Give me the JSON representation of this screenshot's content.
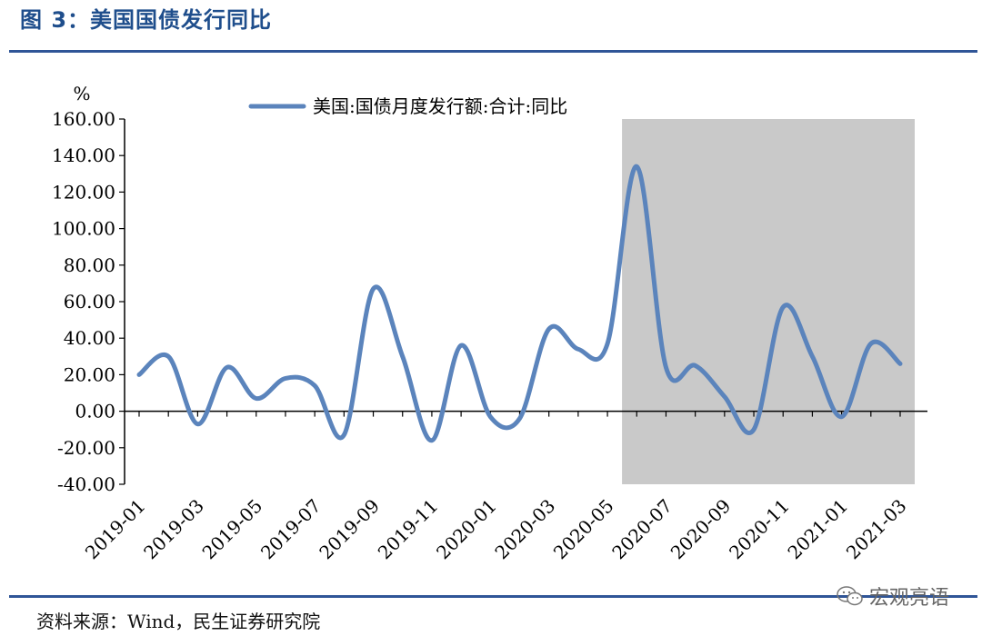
{
  "figure": {
    "title": "图 3：美国国债发行同比",
    "source": "资料来源：Wind，民生证券研究院",
    "watermark": "宏观亮语"
  },
  "colors": {
    "title": "#1f4e8c",
    "rule": "#2f5597",
    "series": "#5b84bc",
    "shade": "#c9c9c9",
    "axis": "#000000"
  },
  "chart_data": {
    "type": "line",
    "unit_label": "%",
    "ylim": [
      -40,
      160
    ],
    "yticks": [
      "160.00",
      "140.00",
      "120.00",
      "100.00",
      "80.00",
      "60.00",
      "40.00",
      "20.00",
      "0.00",
      "-20.00",
      "-40.00"
    ],
    "ytick_values": [
      160,
      140,
      120,
      100,
      80,
      60,
      40,
      20,
      0,
      -20,
      -40
    ],
    "x": [
      "2019-01",
      "2019-02",
      "2019-03",
      "2019-04",
      "2019-05",
      "2019-06",
      "2019-07",
      "2019-08",
      "2019-09",
      "2019-10",
      "2019-11",
      "2019-12",
      "2020-01",
      "2020-02",
      "2020-03",
      "2020-04",
      "2020-05",
      "2020-06",
      "2020-07",
      "2020-08",
      "2020-09",
      "2020-10",
      "2020-11",
      "2020-12",
      "2021-01",
      "2021-02",
      "2021-03"
    ],
    "xtick_labels": [
      "2019-01",
      "2019-03",
      "2019-05",
      "2019-07",
      "2019-09",
      "2019-11",
      "2020-01",
      "2020-03",
      "2020-05",
      "2020-07",
      "2020-09",
      "2020-11",
      "2021-01",
      "2021-03"
    ],
    "grid": false,
    "legend_position": "top-center",
    "shaded_range": [
      "2020-05",
      "2021-03"
    ],
    "series": [
      {
        "name": "美国:国债月度发行额:合计:同比",
        "values": [
          20,
          30,
          -7,
          24,
          7,
          18,
          14,
          -13,
          67,
          30,
          -16,
          36,
          -3,
          -4,
          45,
          34,
          37,
          134,
          24,
          25,
          8,
          -10,
          57,
          30,
          -3,
          37,
          26
        ]
      }
    ]
  }
}
